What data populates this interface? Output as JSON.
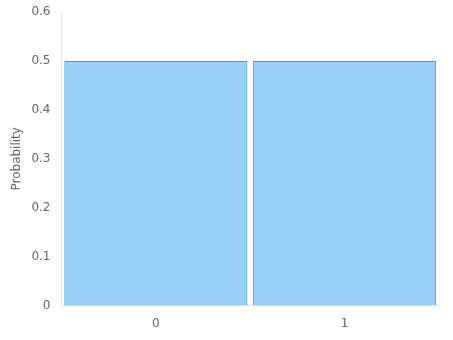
{
  "chart_data": {
    "type": "bar",
    "x": [
      0,
      1
    ],
    "values": [
      0.5,
      0.5
    ],
    "ylabel": "Probability",
    "xlim": [
      -0.5,
      1.5
    ],
    "xticks": [
      0,
      1
    ],
    "ylim": [
      0,
      0.6
    ],
    "yticks": [
      0,
      0.1,
      0.2,
      0.3,
      0.4,
      0.5,
      0.6
    ],
    "grid": false
  }
}
